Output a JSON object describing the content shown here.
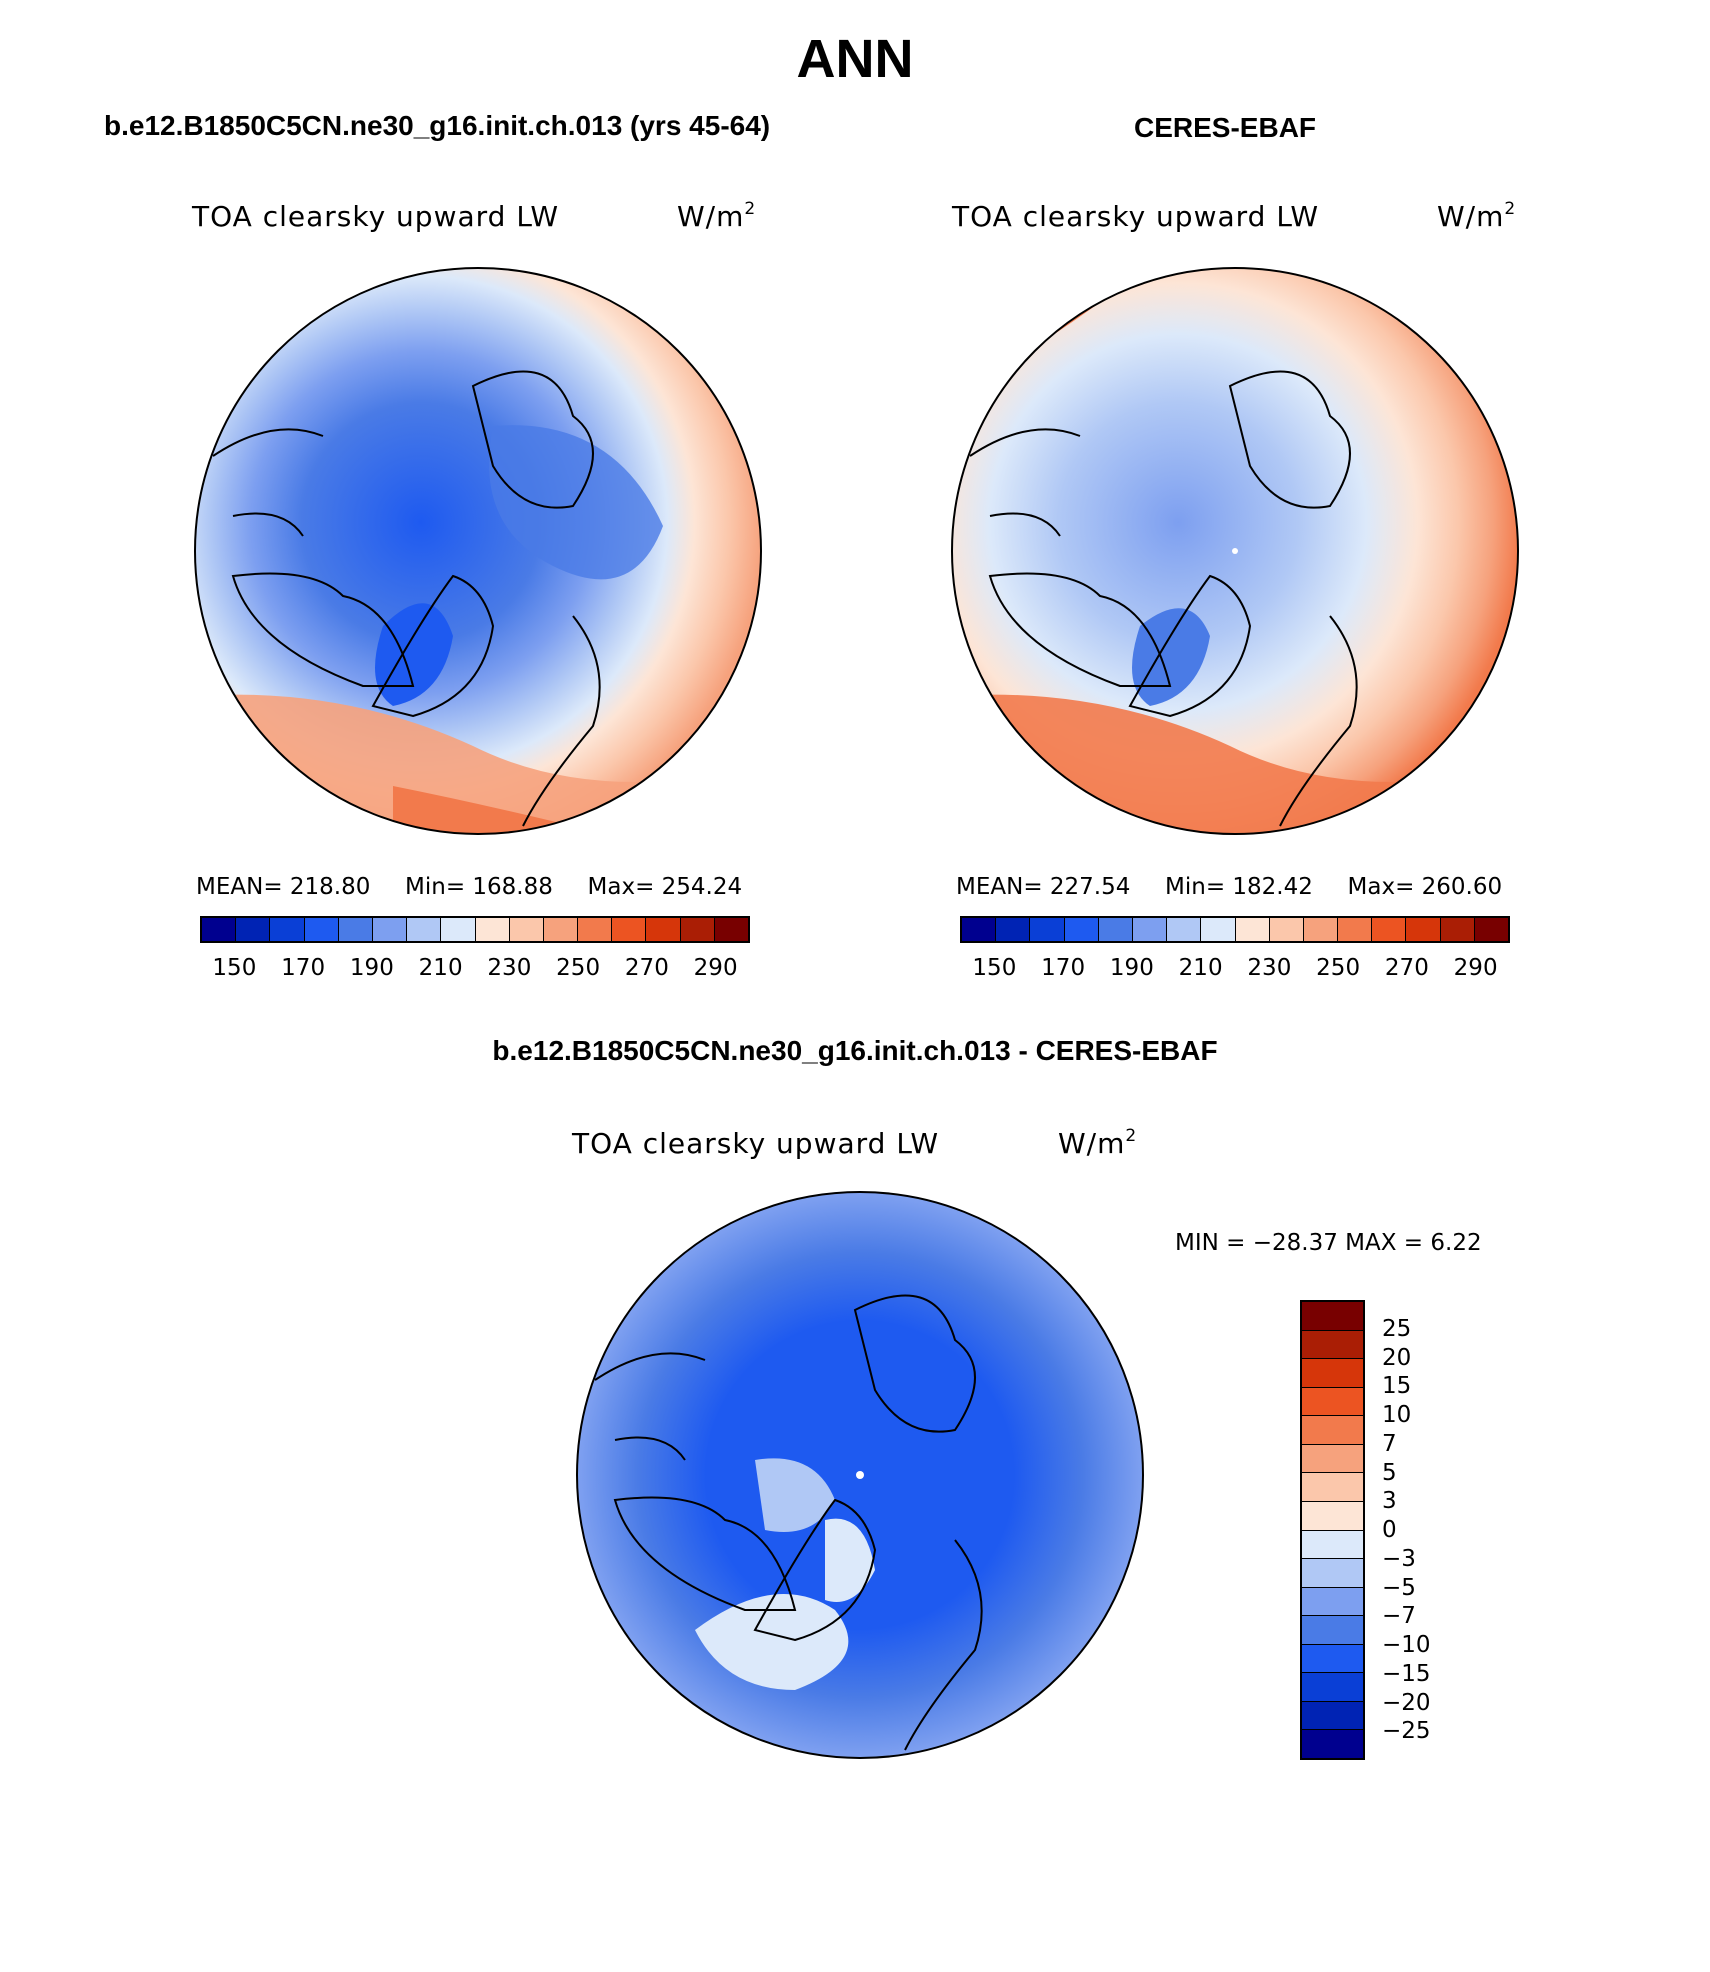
{
  "title": "ANN",
  "panels": {
    "model": {
      "case_title": "b.e12.B1850C5CN.ne30_g16.init.ch.013 (yrs 45-64)",
      "variable": "TOA clearsky upward LW",
      "unit": "W/m",
      "unit_power": "2",
      "stats": {
        "mean": "MEAN= 218.80",
        "min": "Min= 168.88",
        "max": "Max= 254.24"
      },
      "colorbar_ticks": [
        "150",
        "170",
        "190",
        "210",
        "230",
        "250",
        "270",
        "290"
      ]
    },
    "obs": {
      "case_title": "CERES-EBAF",
      "variable": "TOA clearsky upward LW",
      "unit": "W/m",
      "unit_power": "2",
      "stats": {
        "mean": "MEAN= 227.54",
        "min": "Min= 182.42",
        "max": "Max= 260.60"
      },
      "colorbar_ticks": [
        "150",
        "170",
        "190",
        "210",
        "230",
        "250",
        "270",
        "290"
      ]
    },
    "diff": {
      "case_title": "b.e12.B1850C5CN.ne30_g16.init.ch.013 - CERES-EBAF",
      "variable": "TOA clearsky upward LW",
      "unit": "W/m",
      "unit_power": "2",
      "minmax": "MIN = −28.37 MAX =    6.22",
      "colorbar_ticks": [
        "25",
        "20",
        "15",
        "10",
        "7",
        "5",
        "3",
        "0",
        "−3",
        "−5",
        "−7",
        "−10",
        "−15",
        "−20",
        "−25"
      ]
    }
  },
  "colors": {
    "abs_scale": [
      "#00008f",
      "#0023b4",
      "#0a3fd6",
      "#1e5af0",
      "#4a7be6",
      "#7d9ff0",
      "#b0c8f5",
      "#dce9fa",
      "#fde5d6",
      "#fbc7ab",
      "#f6a27d",
      "#f27a4c",
      "#ec5422",
      "#d6360a",
      "#aa1e05",
      "#780000"
    ],
    "diff_scale": [
      "#780000",
      "#aa1e05",
      "#d6360a",
      "#ec5422",
      "#f27a4c",
      "#f6a27d",
      "#fbc7ab",
      "#fde5d6",
      "#dce9fa",
      "#b0c8f5",
      "#7d9ff0",
      "#4a7be6",
      "#1e5af0",
      "#0a3fd6",
      "#0023b4",
      "#00008f"
    ]
  }
}
